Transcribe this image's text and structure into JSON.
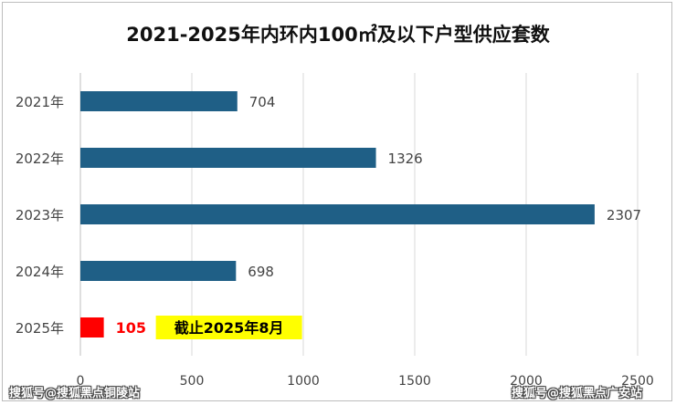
{
  "chart_data": {
    "type": "bar",
    "orientation": "horizontal",
    "title": "2021-2025年内环内100㎡及以下户型供应套数",
    "categories": [
      "2021年",
      "2022年",
      "2023年",
      "2024年",
      "2025年"
    ],
    "values": [
      704,
      1326,
      2307,
      698,
      105
    ],
    "xlim": [
      0,
      2500
    ],
    "x_ticks": [
      "0",
      "500",
      "1000",
      "1500",
      "2000",
      "2500"
    ],
    "grid": true,
    "annotation": "截止2025年8月",
    "colors": {
      "bar": "#1f5f86",
      "highlight_bar": "#ff0000",
      "highlight_label": "#ff0000",
      "annotation_bg": "#ffff00",
      "grid": "#d9d9d9"
    }
  },
  "watermarks": {
    "left": "搜狐号@搜狐黑点铜陵站",
    "right": "搜狐号@搜狐黑点广安站"
  }
}
